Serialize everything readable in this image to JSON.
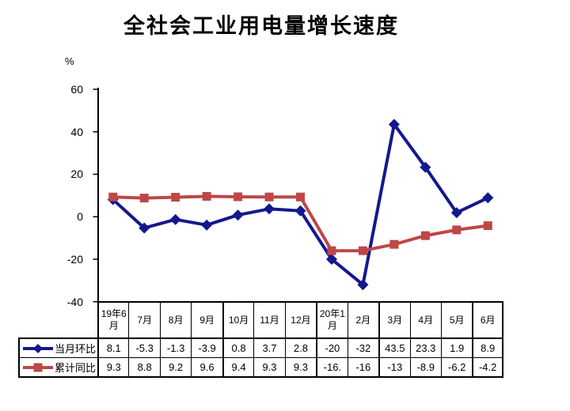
{
  "title": "全社会工业用电量增长速度",
  "y_axis": {
    "unit": "%",
    "ticks": [
      60,
      40,
      20,
      0,
      -20,
      -40
    ]
  },
  "chart_data": {
    "type": "line",
    "title": "全社会工业用电量增长速度",
    "categories": [
      "19年6月",
      "7月",
      "8月",
      "9月",
      "10月",
      "11月",
      "12月",
      "20年1月",
      "2月",
      "3月",
      "4月",
      "5月",
      "6月"
    ],
    "ylabel": "%",
    "ylim": [
      -40,
      60
    ],
    "ytick_step": 20,
    "grid": false,
    "legend_position": "left-of-data-table",
    "series": [
      {
        "name": "当月环比",
        "marker": "diamond",
        "color": "#14188E",
        "values": [
          8.1,
          -5.3,
          -1.3,
          -3.9,
          0.8,
          3.7,
          2.8,
          -20,
          -32,
          43.5,
          23.3,
          1.9,
          8.9
        ],
        "display_values": [
          "8.1",
          "-5.3",
          "-1.3",
          "-3.9",
          "0.8",
          "3.7",
          "2.8",
          "-20",
          "-32",
          "43.5",
          "23.3",
          "1.9",
          "8.9"
        ]
      },
      {
        "name": "累计同比",
        "marker": "square",
        "color": "#BE4747",
        "values": [
          9.3,
          8.8,
          9.2,
          9.6,
          9.4,
          9.3,
          9.3,
          -16,
          -16,
          -13,
          -8.9,
          -6.2,
          -4.2
        ],
        "display_values": [
          "9.3",
          "8.8",
          "9.2",
          "9.6",
          "9.4",
          "9.3",
          "9.3",
          "-16.",
          "-16",
          "-13",
          "-8.9",
          "-6.2",
          "-4.2"
        ]
      }
    ],
    "thick_dividers_after_columns": [
      4,
      7,
      9,
      12
    ]
  },
  "colors": {
    "background": "#FFFFFF",
    "axis": "#000000",
    "table_border": "#000000"
  }
}
